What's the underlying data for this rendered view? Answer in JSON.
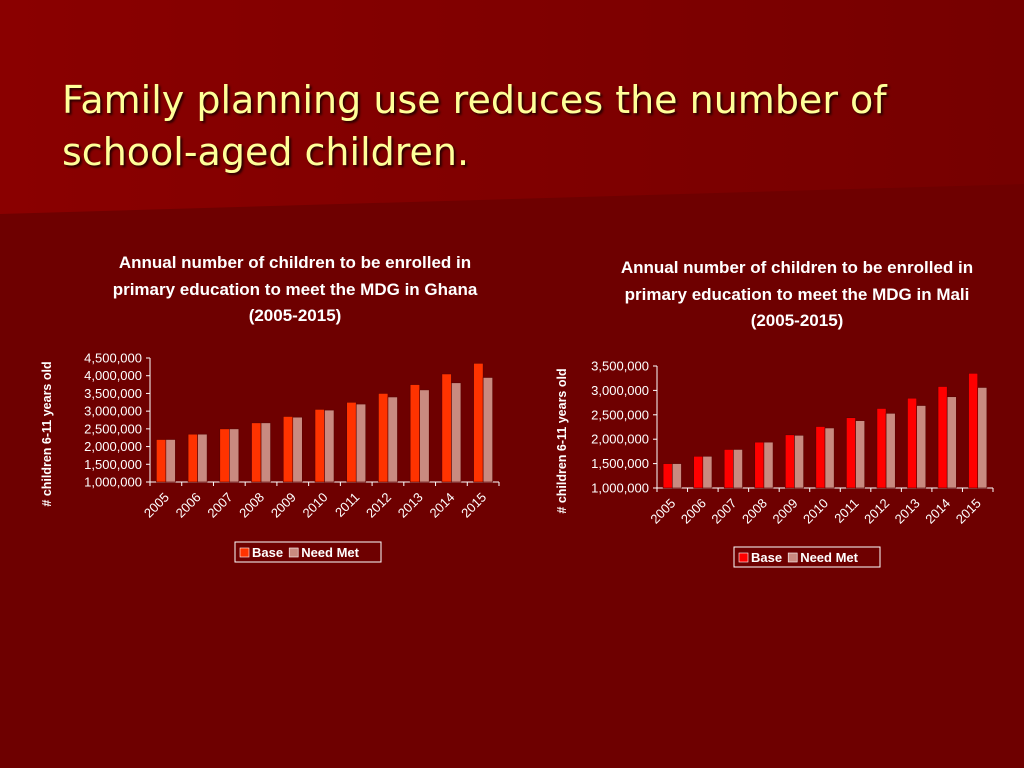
{
  "slide": {
    "title": "Family planning use reduces the number of school-aged children.",
    "background": "#6e0000",
    "title_color": "#ffff99"
  },
  "chart_data": [
    {
      "type": "bar",
      "title": "Annual number of children to be enrolled in primary education to meet the MDG in Ghana (2005-2015)",
      "ylabel": "# children 6-11 years old",
      "xlabel": "",
      "categories": [
        "2005",
        "2006",
        "2007",
        "2008",
        "2009",
        "2010",
        "2011",
        "2012",
        "2013",
        "2014",
        "2015"
      ],
      "series": [
        {
          "name": "Base",
          "color": "#ff3300",
          "values": [
            2200000,
            2350000,
            2500000,
            2670000,
            2850000,
            3050000,
            3250000,
            3500000,
            3750000,
            4050000,
            4350000
          ]
        },
        {
          "name": "Need Met",
          "color": "#c98a80",
          "values": [
            2200000,
            2350000,
            2500000,
            2670000,
            2830000,
            3030000,
            3200000,
            3400000,
            3600000,
            3800000,
            3950000
          ]
        }
      ],
      "ylim": [
        1000000,
        4500000
      ],
      "yticks": [
        "4,500,000",
        "4,000,000",
        "3,500,000",
        "3,000,000",
        "2,500,000",
        "2,000,000",
        "1,500,000",
        "1,000,000"
      ],
      "legend_position": "bottom",
      "grid": false
    },
    {
      "type": "bar",
      "title": "Annual number of children to be enrolled in primary education to meet the MDG in Mali (2005-2015)",
      "ylabel": "# children 6-11 years old",
      "xlabel": "",
      "categories": [
        "2005",
        "2006",
        "2007",
        "2008",
        "2009",
        "2010",
        "2011",
        "2012",
        "2013",
        "2014",
        "2015"
      ],
      "series": [
        {
          "name": "Base",
          "color": "#ff0000",
          "values": [
            1500000,
            1650000,
            1790000,
            1940000,
            2090000,
            2260000,
            2440000,
            2630000,
            2840000,
            3080000,
            3350000
          ]
        },
        {
          "name": "Need Met",
          "color": "#c98a80",
          "values": [
            1500000,
            1650000,
            1790000,
            1940000,
            2080000,
            2230000,
            2380000,
            2530000,
            2690000,
            2870000,
            3060000
          ]
        }
      ],
      "ylim": [
        1000000,
        3500000
      ],
      "yticks": [
        "3,500,000",
        "3,000,000",
        "2,500,000",
        "2,000,000",
        "1,500,000",
        "1,000,000"
      ],
      "legend_position": "bottom",
      "grid": false
    }
  ]
}
